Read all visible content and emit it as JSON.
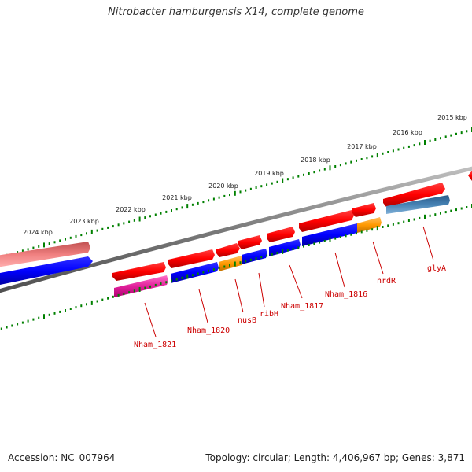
{
  "header": {
    "title": "Nitrobacter hamburgensis X14, complete genome"
  },
  "footer": {
    "accession": "Accession: NC_007964",
    "stats": "Topology: circular; Length: 4,406,967 bp; Genes: 3,871"
  },
  "ruler": {
    "unit": "kbp",
    "labels": [
      "2015 kbp",
      "2016 kbp",
      "2017 kbp",
      "2018 kbp",
      "2019 kbp",
      "2020 kbp",
      "2021 kbp",
      "2022 kbp",
      "2023 kbp",
      "2024 kbp"
    ]
  },
  "genes": {
    "labels": [
      "Nham_1821",
      "Nham_1820",
      "nusB",
      "ribH",
      "Nham_1817",
      "Nham_1816",
      "nrdR",
      "glyA"
    ]
  },
  "colors": {
    "backbone": "#808080",
    "forward_strand": "#ff0000",
    "reverse_strand": "#0000ff",
    "rrna_like": "#ff69b4",
    "orange_gene": "#ff9900",
    "steel_gene": "#4682b4",
    "ticks": "#008000",
    "label_color": "#cc0000"
  }
}
